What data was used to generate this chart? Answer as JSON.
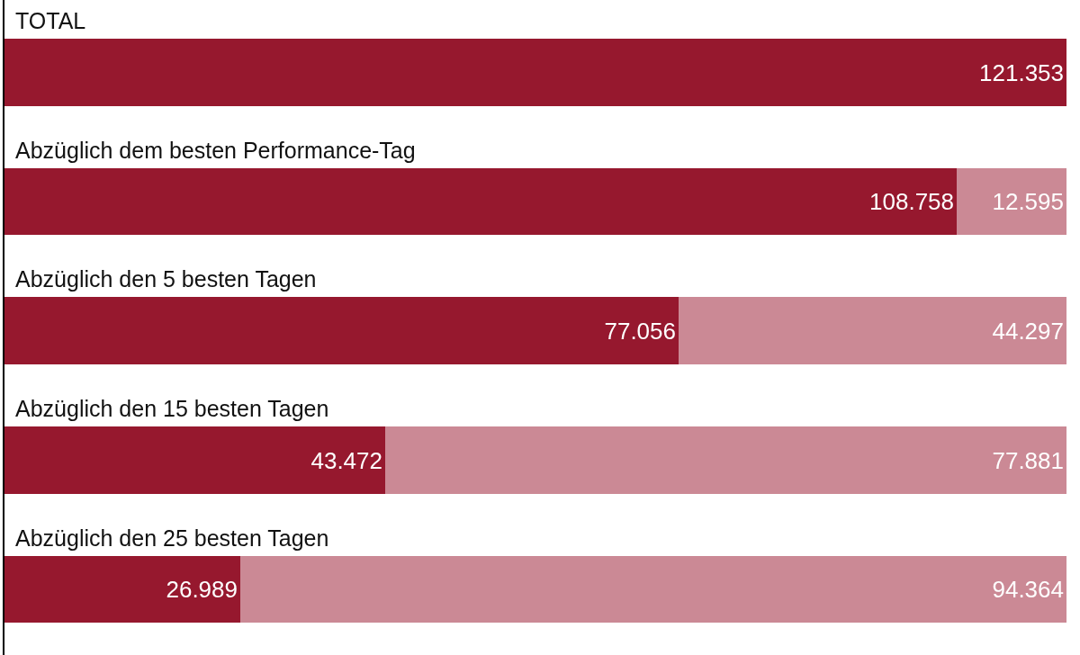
{
  "chart_data": {
    "type": "bar",
    "orientation": "horizontal",
    "stacked": true,
    "categories": [
      "TOTAL",
      "Abzüglich dem besten Performance-Tag",
      "Abzüglich den 5 besten Tagen",
      "Abzüglich den 15 besten Tagen",
      "Abzüglich den 25 besten Tagen"
    ],
    "xlim": [
      0,
      121353
    ],
    "tick_labels": "y",
    "series": [
      {
        "color": "#96182e",
        "values": [
          121353,
          108758,
          77056,
          43472,
          26989
        ],
        "value_labels": [
          "121.353",
          "108.758",
          "77.056",
          "43.472",
          "26.989"
        ]
      },
      {
        "color": "#cb8995",
        "values": [
          null,
          12595,
          44297,
          77881,
          94364
        ],
        "value_labels": [
          null,
          "12.595",
          "44.297",
          "77.881",
          "94.364"
        ]
      }
    ]
  }
}
